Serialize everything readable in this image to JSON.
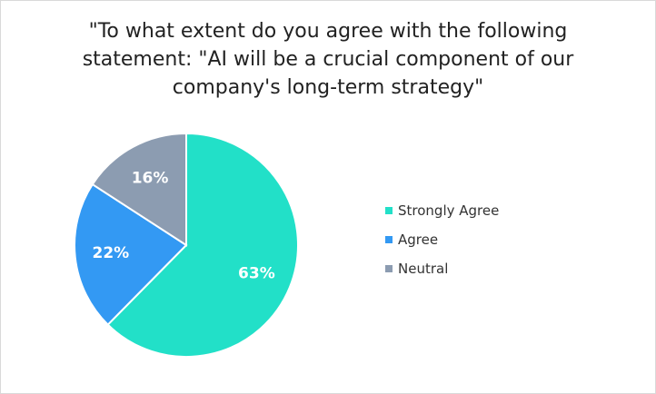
{
  "chart_data": {
    "type": "pie",
    "title_lines": [
      "\"To what extent do you agree with the following",
      "statement: \"AI will be a crucial component of our",
      "company's long-term strategy\""
    ],
    "slices": [
      {
        "label": "Strongly Agree",
        "value": 63,
        "display": "63%",
        "color": "#22e0c8"
      },
      {
        "label": "Agree",
        "value": 22,
        "display": "22%",
        "color": "#3399f3"
      },
      {
        "label": "Neutral",
        "value": 16,
        "display": "16%",
        "color": "#8c9cb1"
      }
    ],
    "legend_position": "right"
  }
}
